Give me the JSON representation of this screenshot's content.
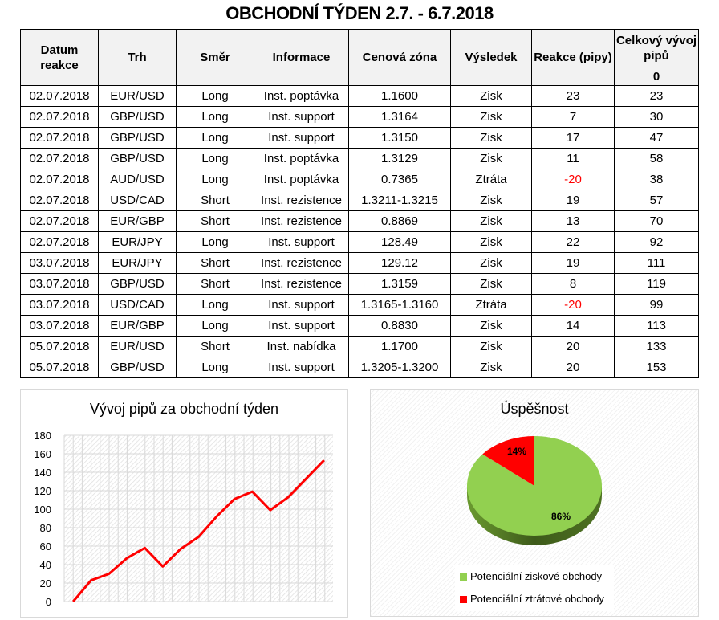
{
  "title": "OBCHODNÍ TÝDEN 2.7. - 6.7.2018",
  "table": {
    "headers": [
      "Datum reakce",
      "Trh",
      "Směr",
      "Informace",
      "Cenová zóna",
      "Výsledek",
      "Reakce (pipy)",
      "Celkový vývoj pipů"
    ],
    "initial_total": "0",
    "rows": [
      [
        "02.07.2018",
        "EUR/USD",
        "Long",
        "Inst. poptávka",
        "1.1600",
        "Zisk",
        "23",
        "23"
      ],
      [
        "02.07.2018",
        "GBP/USD",
        "Long",
        "Inst. support",
        "1.3164",
        "Zisk",
        "7",
        "30"
      ],
      [
        "02.07.2018",
        "GBP/USD",
        "Long",
        "Inst. support",
        "1.3150",
        "Zisk",
        "17",
        "47"
      ],
      [
        "02.07.2018",
        "GBP/USD",
        "Long",
        "Inst. poptávka",
        "1.3129",
        "Zisk",
        "11",
        "58"
      ],
      [
        "02.07.2018",
        "AUD/USD",
        "Long",
        "Inst. poptávka",
        "0.7365",
        "Ztráta",
        "-20",
        "38"
      ],
      [
        "02.07.2018",
        "USD/CAD",
        "Short",
        "Inst. rezistence",
        "1.3211-1.3215",
        "Zisk",
        "19",
        "57"
      ],
      [
        "02.07.2018",
        "EUR/GBP",
        "Short",
        "Inst. rezistence",
        "0.8869",
        "Zisk",
        "13",
        "70"
      ],
      [
        "02.07.2018",
        "EUR/JPY",
        "Long",
        "Inst. support",
        "128.49",
        "Zisk",
        "22",
        "92"
      ],
      [
        "03.07.2018",
        "EUR/JPY",
        "Short",
        "Inst. rezistence",
        "129.12",
        "Zisk",
        "19",
        "111"
      ],
      [
        "03.07.2018",
        "GBP/USD",
        "Short",
        "Inst. rezistence",
        "1.3159",
        "Zisk",
        "8",
        "119"
      ],
      [
        "03.07.2018",
        "USD/CAD",
        "Long",
        "Inst. support",
        "1.3165-1.3160",
        "Ztráta",
        "-20",
        "99"
      ],
      [
        "03.07.2018",
        "EUR/GBP",
        "Long",
        "Inst. support",
        "0.8830",
        "Zisk",
        "14",
        "113"
      ],
      [
        "05.07.2018",
        "EUR/USD",
        "Short",
        "Inst. nabídka",
        "1.1700",
        "Zisk",
        "20",
        "133"
      ],
      [
        "05.07.2018",
        "GBP/USD",
        "Long",
        "Inst. support",
        "1.3205-1.3200",
        "Zisk",
        "20",
        "153"
      ]
    ]
  },
  "chart_data": [
    {
      "type": "line",
      "title": "Vývoj pipů za obchodní týden",
      "ylim": [
        0,
        180
      ],
      "yticks": [
        0,
        20,
        40,
        60,
        80,
        100,
        120,
        140,
        160,
        180
      ],
      "grid": true,
      "series": [
        {
          "values": [
            0,
            23,
            30,
            47,
            58,
            38,
            57,
            70,
            92,
            111,
            119,
            99,
            113,
            133,
            153
          ],
          "color": "#ff0000"
        }
      ]
    },
    {
      "type": "pie",
      "title": "Úspěšnost",
      "legend": "bottom",
      "slices": [
        {
          "name": "Potenciální ziskové obchody",
          "value": 86,
          "label": "86%",
          "color": "#92d050"
        },
        {
          "name": "Potenciální ztrátové obchody",
          "value": 14,
          "label": "14%",
          "color": "#ff0000"
        }
      ]
    }
  ]
}
